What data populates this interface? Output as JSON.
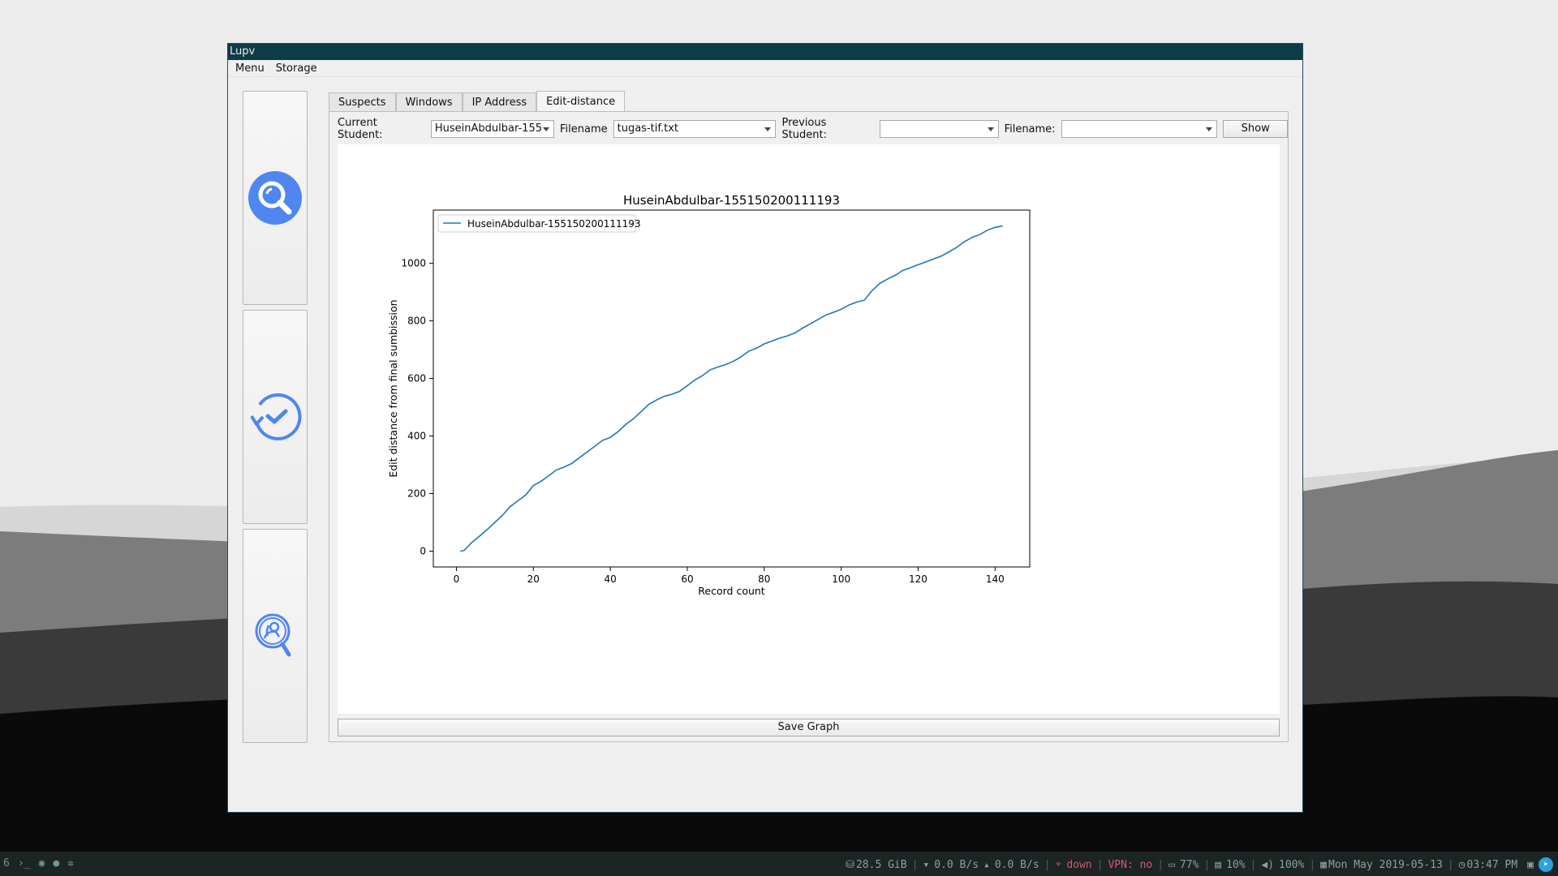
{
  "window": {
    "title": "Lupv"
  },
  "menu": {
    "items": [
      "Menu",
      "Storage"
    ]
  },
  "sidebar": {
    "buttons": [
      "search-icon",
      "history-icon",
      "user-search-icon"
    ]
  },
  "tabs": [
    {
      "label": "Suspects"
    },
    {
      "label": "Windows"
    },
    {
      "label": "IP Address"
    },
    {
      "label": "Edit-distance"
    }
  ],
  "active_tab": "Edit-distance",
  "controls": {
    "current_student_label": "Current Student:",
    "current_student_value": "HuseinAbdulbar-155",
    "filename_label": "Filename",
    "filename_value": "tugas-tif.txt",
    "previous_student_label": "Previous Student:",
    "previous_student_value": "",
    "filename2_label": "Filename:",
    "filename2_value": "",
    "show_label": "Show"
  },
  "save_graph_label": "Save Graph",
  "chart_data": {
    "type": "line",
    "title": "HuseinAbdulbar-155150200111193",
    "xlabel": "Record count",
    "ylabel": "Edit distance from final sumbission",
    "xlim": [
      -6,
      149
    ],
    "ylim": [
      -55,
      1185
    ],
    "xticks": [
      0,
      20,
      40,
      60,
      80,
      100,
      120,
      140
    ],
    "yticks": [
      0,
      200,
      400,
      600,
      800,
      1000
    ],
    "legend": "top-left",
    "series": [
      {
        "name": "HuseinAbdulbar-155150200111193",
        "color": "#1f77b4",
        "x": [
          1,
          2,
          4,
          6,
          8,
          10,
          12,
          14,
          16,
          18,
          20,
          22,
          24,
          26,
          28,
          30,
          32,
          34,
          36,
          38,
          40,
          42,
          44,
          46,
          48,
          50,
          52,
          54,
          56,
          58,
          60,
          62,
          64,
          66,
          68,
          70,
          72,
          74,
          76,
          78,
          80,
          82,
          84,
          86,
          88,
          90,
          92,
          94,
          96,
          98,
          100,
          102,
          104,
          106,
          108,
          110,
          112,
          114,
          116,
          118,
          120,
          122,
          124,
          126,
          128,
          130,
          132,
          134,
          136,
          138,
          140,
          142
        ],
        "y": [
          0,
          2,
          30,
          52,
          75,
          100,
          125,
          155,
          175,
          195,
          228,
          243,
          262,
          282,
          292,
          305,
          325,
          345,
          365,
          385,
          395,
          415,
          440,
          460,
          485,
          510,
          525,
          538,
          545,
          555,
          575,
          595,
          610,
          630,
          640,
          648,
          660,
          675,
          695,
          705,
          720,
          730,
          740,
          748,
          758,
          775,
          790,
          805,
          820,
          830,
          840,
          855,
          865,
          872,
          905,
          930,
          945,
          958,
          975,
          985,
          995,
          1005,
          1015,
          1025,
          1040,
          1055,
          1075,
          1090,
          1100,
          1115,
          1125,
          1130
        ]
      }
    ]
  },
  "taskbar": {
    "workspace": "6",
    "disk": "28.5 GiB",
    "down_rate": "0.0 B/s",
    "up_rate": "0.0 B/s",
    "wifi": "down",
    "vpn": "VPN: no",
    "battery": "77%",
    "cpu": "10%",
    "volume": "100%",
    "date": "Mon May 2019-05-13",
    "time": "03:47 PM"
  }
}
